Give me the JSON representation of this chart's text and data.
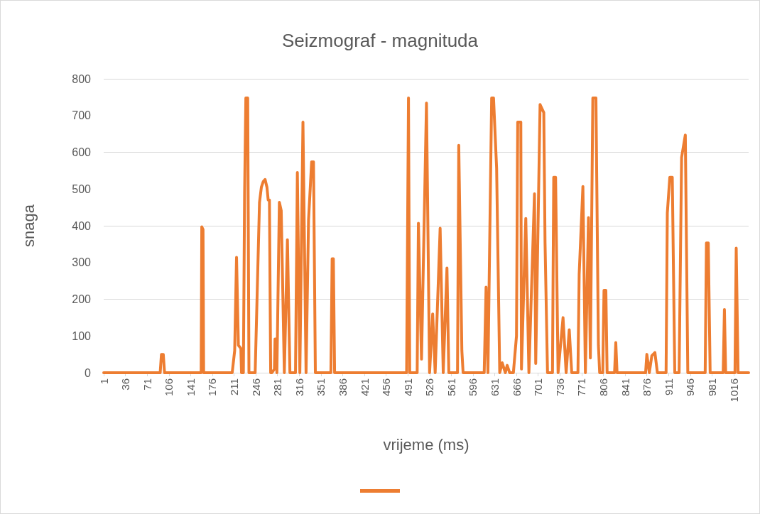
{
  "chart_data": {
    "type": "line",
    "title": "Seizmograf - magnituda",
    "xlabel": "vrijeme (ms)",
    "ylabel": "snaga",
    "xlim": [
      1,
      1040
    ],
    "xticks": [
      1,
      36,
      71,
      106,
      141,
      176,
      211,
      246,
      281,
      316,
      351,
      386,
      421,
      456,
      491,
      526,
      561,
      596,
      631,
      666,
      701,
      736,
      771,
      806,
      841,
      876,
      911,
      946,
      981,
      1016
    ],
    "ylim": [
      0,
      800
    ],
    "yticks": [
      0,
      100,
      200,
      300,
      400,
      500,
      600,
      700,
      800
    ],
    "grid": "y",
    "marker": "none",
    "line_style": "solid",
    "series": [
      {
        "color": "#ed7d31",
        "x": [
          1,
          92,
          94,
          97,
          99,
          158,
          159,
          161,
          162,
          208,
          212,
          215,
          218,
          222,
          223,
          224,
          226,
          228,
          230,
          233,
          235,
          238,
          245,
          252,
          255,
          258,
          261,
          264,
          266,
          268,
          270,
          272,
          276,
          277,
          279,
          280,
          284,
          287,
          292,
          297,
          301,
          310,
          313,
          317,
          322,
          327,
          331,
          336,
          339,
          342,
          367,
          369,
          371,
          373,
          489,
          492,
          494,
          506,
          508,
          513,
          521,
          526,
          531,
          535,
          543,
          548,
          554,
          557,
          571,
          573,
          578,
          580,
          614,
          617,
          620,
          626,
          629,
          634,
          639,
          643,
          648,
          651,
          655,
          661,
          666,
          668,
          673,
          674,
          681,
          686,
          695,
          697,
          704,
          710,
          712,
          716,
          724,
          726,
          729,
          733,
          741,
          746,
          751,
          755,
          765,
          767,
          773,
          777,
          782,
          785,
          789,
          794,
          798,
          800,
          805,
          807,
          810,
          812,
          824,
          826,
          828,
          874,
          876,
          880,
          884,
          889,
          893,
          907,
          909,
          913,
          917,
          921,
          928,
          932,
          938,
          942,
          970,
          972,
          975,
          978,
          999,
          1001,
          1003,
          1018,
          1020,
          1023,
          1040
        ],
        "values": [
          0,
          0,
          50,
          50,
          0,
          0,
          397,
          390,
          0,
          0,
          60,
          314,
          75,
          66,
          0,
          0,
          0,
          490,
          748,
          748,
          0,
          0,
          0,
          464,
          505,
          520,
          526,
          505,
          470,
          470,
          0,
          0,
          10,
          92,
          92,
          0,
          464,
          441,
          0,
          362,
          0,
          0,
          545,
          0,
          682,
          0,
          416,
          574,
          574,
          0,
          0,
          310,
          310,
          0,
          0,
          748,
          0,
          0,
          407,
          37,
          734,
          0,
          160,
          0,
          393,
          0,
          285,
          0,
          0,
          619,
          60,
          0,
          0,
          233,
          0,
          748,
          748,
          557,
          0,
          27,
          0,
          20,
          0,
          0,
          100,
          682,
          682,
          10,
          420,
          0,
          487,
          25,
          730,
          708,
          355,
          0,
          0,
          532,
          532,
          0,
          150,
          0,
          117,
          0,
          0,
          268,
          507,
          0,
          422,
          40,
          748,
          748,
          75,
          0,
          0,
          224,
          224,
          0,
          0,
          82,
          0,
          0,
          50,
          0,
          46,
          55,
          0,
          0,
          435,
          532,
          532,
          0,
          0,
          586,
          647,
          0,
          0,
          353,
          353,
          0,
          0,
          172,
          0,
          0,
          339,
          0,
          0
        ]
      }
    ]
  }
}
